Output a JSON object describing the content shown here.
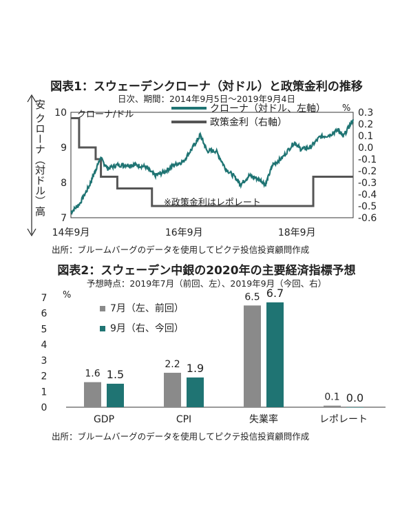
{
  "chart1": {
    "title": "図表1：スウェーデンクローナ（対ドル）と政策金利の推移",
    "subtitle": "日次、期間：2014年9月5日～2019年9月4日",
    "left_axis_label": "安 クローナ（対ドル）高",
    "left_axis_unit": "クローナ/ドル",
    "right_axis_unit": "%",
    "note": "※政策金利はレポレート",
    "source": "出所：ブルームバーグのデータを使用してピクテ投信投資顧問作成",
    "colors": {
      "krona": "#1f7473",
      "policy": "#555555"
    }
  },
  "chart2": {
    "title": "図表2：スウェーデン中銀の2020年の主要経済指標予想",
    "subtitle": "予想時点：2019年7月（前回、左）、2019年9月（今回、右）",
    "unit": "%",
    "source": "出所：ブルームバーグのデータを使用してピクテ投信投資顧問作成",
    "colors": {
      "july": "#8a8a8a",
      "sept": "#1f7473"
    }
  },
  "chart_data": [
    {
      "type": "line",
      "x_tick_labels": [
        "14年9月",
        "16年9月",
        "18年9月"
      ],
      "left_axis": {
        "ticks": [
          "10",
          "9",
          "8",
          "7"
        ],
        "min": 7,
        "max": 10,
        "inverted": true
      },
      "right_axis": {
        "ticks": [
          "0.3",
          "0.2",
          "0.1",
          "0.0",
          "-0.1",
          "-0.2",
          "-0.3",
          "-0.4",
          "-0.5",
          "-0.6"
        ],
        "min": -0.6,
        "max": 0.3
      },
      "series": [
        {
          "name": "クローナ（対ドル、左軸）",
          "axis": "left",
          "x": [
            "2014-09-05",
            "2014-11-01",
            "2015-01-01",
            "2015-02-15",
            "2015-03-15",
            "2015-05-01",
            "2015-07-01",
            "2015-09-01",
            "2015-11-01",
            "2016-01-01",
            "2016-03-01",
            "2016-05-01",
            "2016-07-01",
            "2016-09-01",
            "2016-11-01",
            "2016-12-20",
            "2017-02-01",
            "2017-04-01",
            "2017-06-01",
            "2017-08-01",
            "2017-09-08",
            "2017-11-01",
            "2018-01-01",
            "2018-02-15",
            "2018-04-01",
            "2018-06-01",
            "2018-08-20",
            "2018-10-01",
            "2018-12-01",
            "2019-02-01",
            "2019-04-01",
            "2019-06-01",
            "2019-07-01",
            "2019-09-04"
          ],
          "y": [
            7.15,
            7.4,
            7.9,
            8.4,
            8.7,
            8.4,
            8.5,
            8.5,
            8.5,
            8.45,
            8.2,
            8.3,
            8.5,
            8.6,
            9.0,
            9.35,
            8.9,
            8.9,
            8.4,
            8.15,
            7.95,
            8.2,
            8.1,
            7.95,
            8.5,
            8.7,
            9.15,
            8.95,
            9.0,
            9.3,
            9.35,
            9.5,
            9.3,
            9.8
          ]
        },
        {
          "name": "政策金利（右軸）",
          "axis": "right",
          "x": [
            "2014-09-05",
            "2014-10-28",
            "2015-02-12",
            "2015-03-18",
            "2015-07-02",
            "2016-02-11",
            "2018-12-20",
            "2019-09-04"
          ],
          "y": [
            0.25,
            0.0,
            -0.1,
            -0.25,
            -0.35,
            -0.5,
            -0.25,
            -0.25
          ]
        }
      ]
    },
    {
      "type": "bar",
      "categories": [
        "GDP",
        "CPI",
        "失業率",
        "レポレート"
      ],
      "series": [
        {
          "name": "7月（左、前回）",
          "values": [
            1.6,
            2.2,
            6.5,
            0.1
          ]
        },
        {
          "name": "9月（右、今回）",
          "values": [
            1.5,
            1.9,
            6.7,
            0.0
          ]
        }
      ],
      "value_labels": [
        [
          "1.6",
          "2.2",
          "6.5",
          "0.1"
        ],
        [
          "1.5",
          "1.9",
          "6.7",
          "0.0"
        ]
      ],
      "y_ticks": [
        "7",
        "6",
        "5",
        "4",
        "3",
        "2",
        "1",
        "0"
      ],
      "ylim": [
        0,
        7
      ]
    }
  ]
}
